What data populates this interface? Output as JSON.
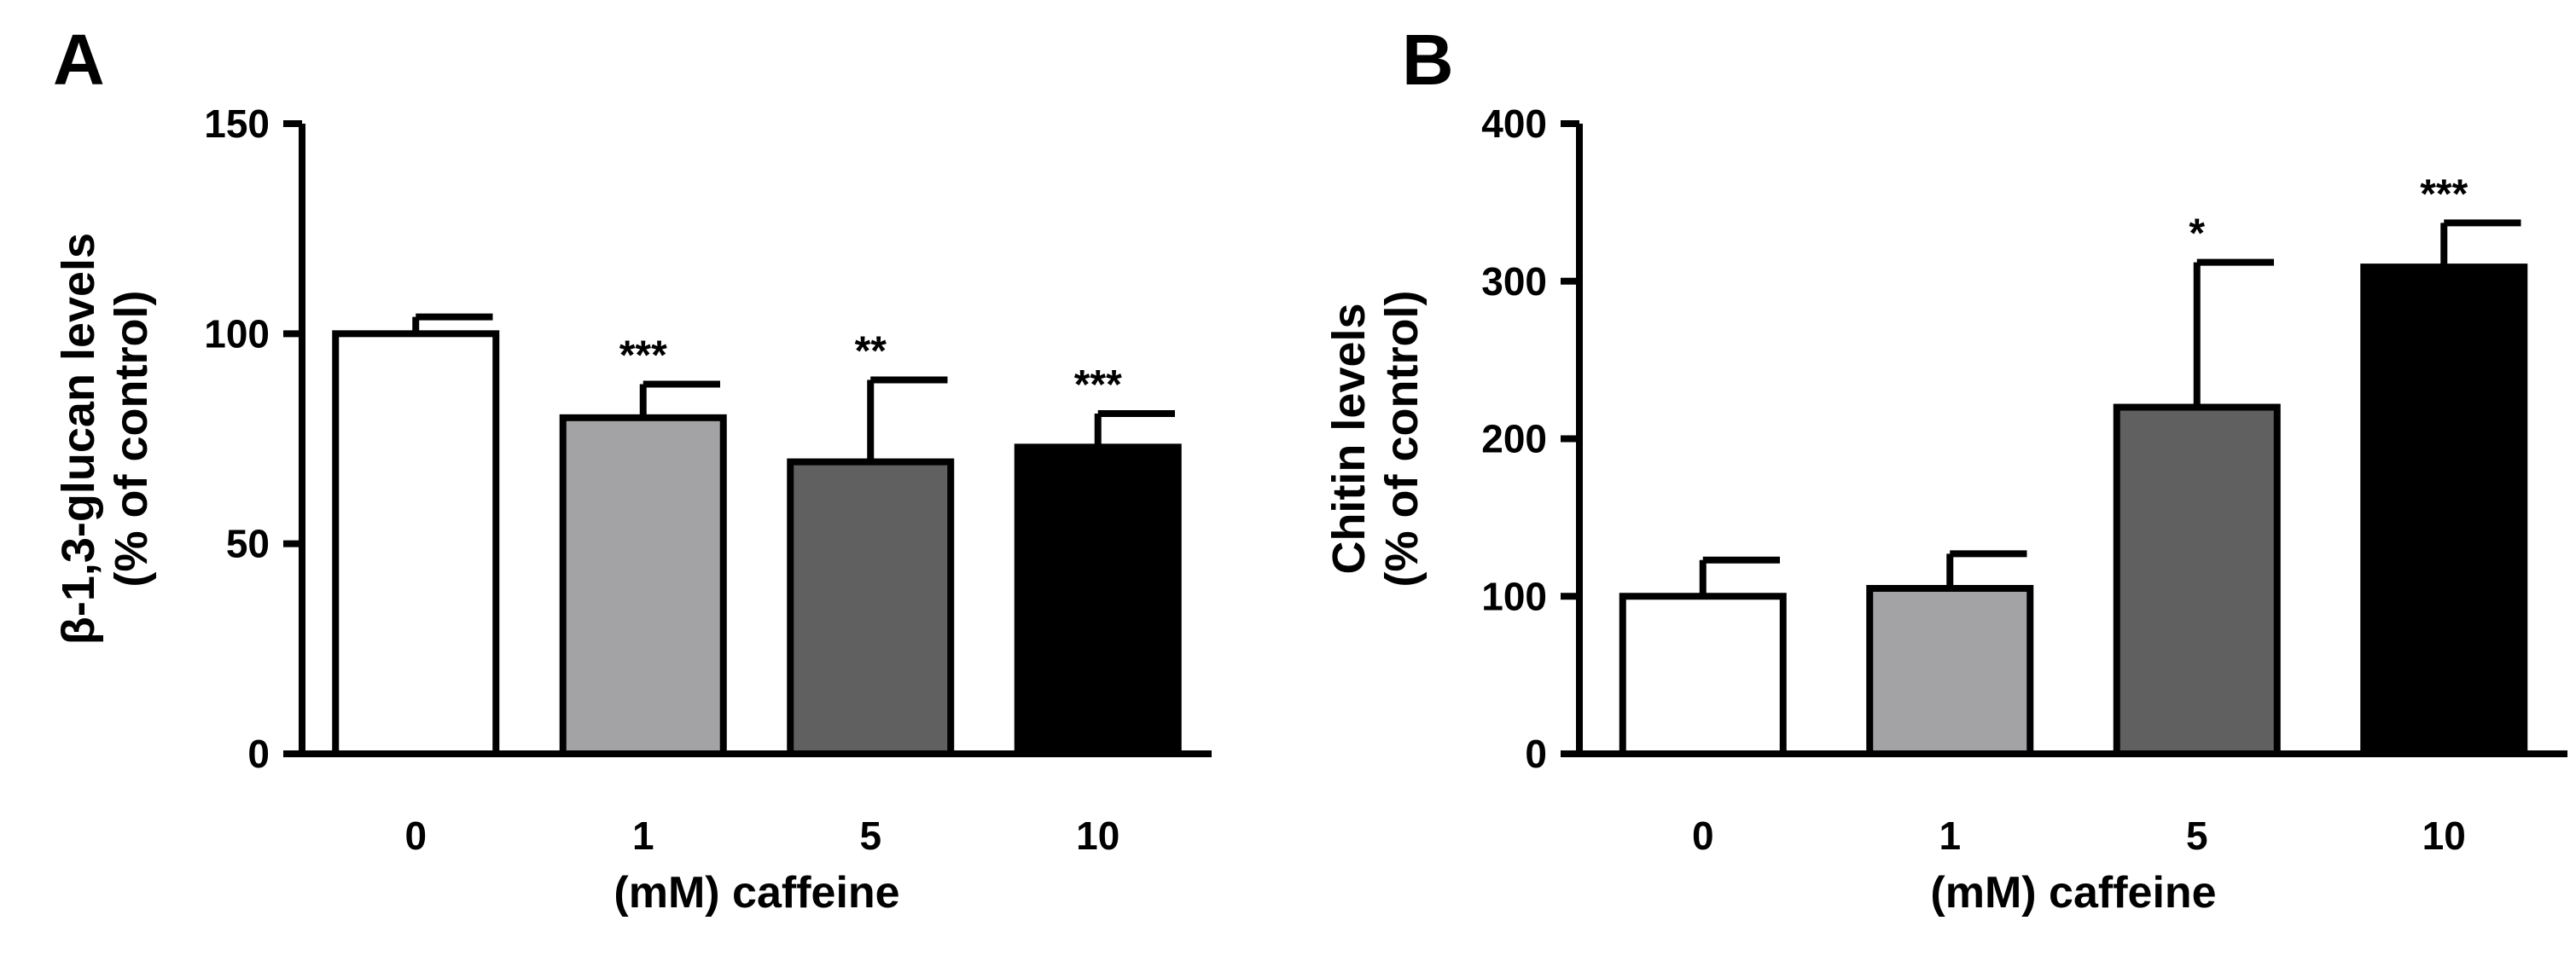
{
  "chart_data": [
    {
      "panel_label": "A",
      "type": "bar",
      "categories": [
        "0",
        "1",
        "5",
        "10"
      ],
      "values": [
        100,
        80,
        69.5,
        73
      ],
      "errors": [
        4,
        8,
        19.5,
        8
      ],
      "significance": [
        "",
        "***",
        "**",
        "***"
      ],
      "bar_colors": [
        "#ffffff",
        "#a3a3a6",
        "#606060",
        "#000000"
      ],
      "ylabel_lines": [
        "β-1,3-glucan levels",
        "(% of control)"
      ],
      "xlabel": "(mM) caffeine",
      "ylim": [
        0,
        150
      ],
      "yticks": [
        0,
        50,
        100,
        150
      ],
      "grid": false
    },
    {
      "panel_label": "B",
      "type": "bar",
      "categories": [
        "0",
        "1",
        "5",
        "10"
      ],
      "values": [
        100,
        105,
        220,
        309
      ],
      "errors": [
        23,
        22,
        92,
        28
      ],
      "significance": [
        "",
        "",
        "*",
        "***"
      ],
      "bar_colors": [
        "#ffffff",
        "#a3a3a6",
        "#606060",
        "#000000"
      ],
      "ylabel_lines": [
        "Chitin levels",
        "(% of control)"
      ],
      "xlabel": "(mM) caffeine",
      "ylim": [
        0,
        400
      ],
      "yticks": [
        0,
        100,
        200,
        300,
        400
      ],
      "grid": false
    }
  ]
}
